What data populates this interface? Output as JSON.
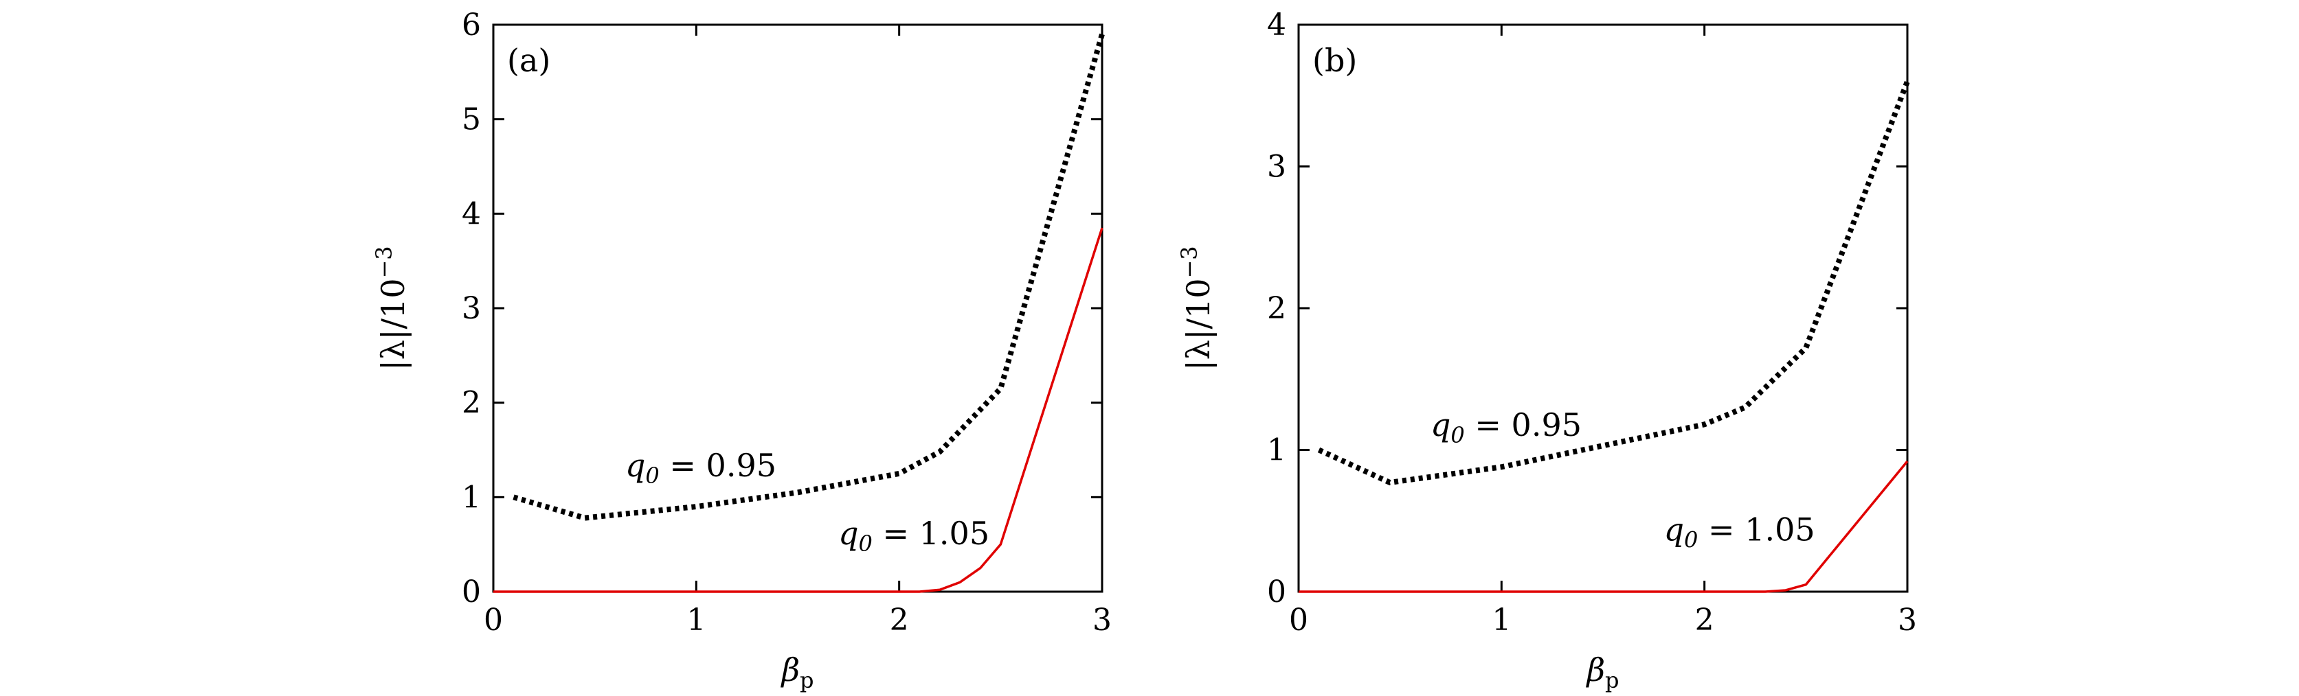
{
  "chart_data": [
    {
      "panel": "(a)",
      "type": "line",
      "xlabel": "βp",
      "ylabel": "|λ|/10−3",
      "xlim": [
        0,
        3
      ],
      "ylim": [
        0,
        6
      ],
      "xticks": [
        "0",
        "1",
        "2",
        "3"
      ],
      "yticks": [
        "0",
        "1",
        "2",
        "3",
        "4",
        "5",
        "6"
      ],
      "grid": false,
      "series": [
        {
          "name": "q0 = 0.95",
          "style": "dotted",
          "color": "#000000",
          "x": [
            0.1,
            0.45,
            1.0,
            1.5,
            2.0,
            2.2,
            2.5,
            3.0
          ],
          "y": [
            1.0,
            0.78,
            0.9,
            1.05,
            1.25,
            1.48,
            2.15,
            5.9
          ]
        },
        {
          "name": "q0 = 1.05",
          "style": "solid",
          "color": "#e00000",
          "x": [
            0.0,
            1.0,
            2.0,
            2.1,
            2.2,
            2.3,
            2.4,
            2.5,
            3.0
          ],
          "y": [
            0.0,
            0.0,
            0.0,
            0.0,
            0.02,
            0.1,
            0.25,
            0.5,
            3.85
          ]
        }
      ],
      "annotations": [
        {
          "text": "q0 = 0.95",
          "x": 0.65,
          "y": 1.22
        },
        {
          "text": "q0 = 1.05",
          "x": 1.7,
          "y": 0.5
        }
      ]
    },
    {
      "panel": "(b)",
      "type": "line",
      "xlabel": "βp",
      "ylabel": "|λ|/10−3",
      "xlim": [
        0,
        3
      ],
      "ylim": [
        0,
        4
      ],
      "xticks": [
        "0",
        "1",
        "2",
        "3"
      ],
      "yticks": [
        "0",
        "1",
        "2",
        "3",
        "4"
      ],
      "grid": false,
      "series": [
        {
          "name": "q0 = 0.95",
          "style": "dotted",
          "color": "#000000",
          "x": [
            0.1,
            0.45,
            1.0,
            1.5,
            2.0,
            2.2,
            2.5,
            3.0
          ],
          "y": [
            1.0,
            0.77,
            0.88,
            1.03,
            1.18,
            1.3,
            1.72,
            3.6
          ]
        },
        {
          "name": "q0 = 1.05",
          "style": "solid",
          "color": "#e00000",
          "x": [
            0.0,
            1.0,
            2.0,
            2.3,
            2.4,
            2.5,
            3.0
          ],
          "y": [
            0.0,
            0.0,
            0.0,
            0.0,
            0.01,
            0.05,
            0.92
          ]
        }
      ],
      "annotations": [
        {
          "text": "q0 = 0.95",
          "x": 0.65,
          "y": 1.1
        },
        {
          "text": "q0 = 1.05",
          "x": 1.8,
          "y": 0.36
        }
      ]
    }
  ]
}
